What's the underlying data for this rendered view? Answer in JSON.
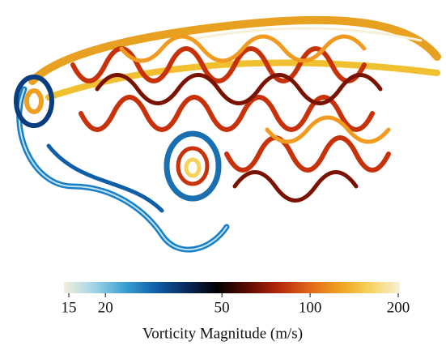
{
  "chart_data": {
    "type": "colorbar",
    "label": "Vorticity Magnitude (m/s)",
    "scale": "log",
    "xlim": [
      15,
      200
    ],
    "xticks": [
      15,
      20,
      50,
      100,
      200
    ],
    "colormap": [
      "#f2efdc",
      "#9fd4e6",
      "#3aa0d2",
      "#0f5fa8",
      "#0a2a5c",
      "#000000",
      "#5c0a02",
      "#b3260a",
      "#e0641a",
      "#f0a020",
      "#f7d25a",
      "#f6f0d8"
    ]
  }
}
